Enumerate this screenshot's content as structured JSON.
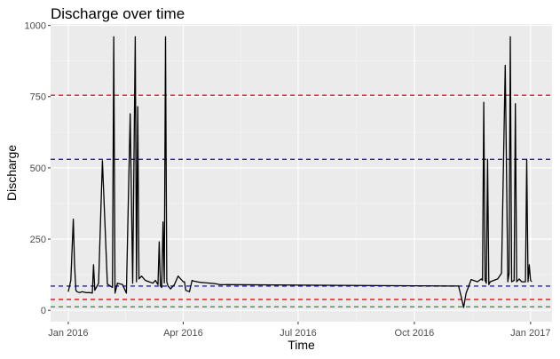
{
  "chart_data": {
    "type": "line",
    "title": "Discharge over time",
    "xlabel": "Time",
    "ylabel": "Discharge",
    "background": "#ebebeb",
    "grid": true,
    "xlim": [
      "2015-12-18",
      "2017-01-18"
    ],
    "ylim": [
      -40,
      1005
    ],
    "x_ticks": [
      {
        "date": "2016-01-01",
        "label": "Jan 2016"
      },
      {
        "date": "2016-04-01",
        "label": "Apr 2016"
      },
      {
        "date": "2016-07-01",
        "label": "Jul 2016"
      },
      {
        "date": "2016-10-01",
        "label": "Oct 2016"
      },
      {
        "date": "2017-01-01",
        "label": "Jan 2017"
      }
    ],
    "y_ticks": [
      {
        "value": 0,
        "label": "0"
      },
      {
        "value": 250,
        "label": "250"
      },
      {
        "value": 500,
        "label": "500"
      },
      {
        "value": 750,
        "label": "750"
      },
      {
        "value": 1000,
        "label": "1000"
      }
    ],
    "series": [
      {
        "color": "#000000",
        "x": [
          "2016-01-01",
          "2016-01-03",
          "2016-01-05",
          "2016-01-06",
          "2016-01-07",
          "2016-01-08",
          "2016-01-10",
          "2016-01-12",
          "2016-01-15",
          "2016-01-18",
          "2016-01-20",
          "2016-01-21",
          "2016-01-22",
          "2016-01-25",
          "2016-01-28",
          "2016-02-01",
          "2016-02-05",
          "2016-02-06",
          "2016-02-07",
          "2016-02-09",
          "2016-02-13",
          "2016-02-16",
          "2016-02-19",
          "2016-02-21",
          "2016-02-23",
          "2016-02-24",
          "2016-02-25",
          "2016-02-26",
          "2016-02-28",
          "2016-03-02",
          "2016-03-05",
          "2016-03-08",
          "2016-03-10",
          "2016-03-12",
          "2016-03-13",
          "2016-03-14",
          "2016-03-15",
          "2016-03-16",
          "2016-03-17",
          "2016-03-18",
          "2016-03-19",
          "2016-03-20",
          "2016-03-22",
          "2016-03-25",
          "2016-03-28",
          "2016-03-31",
          "2016-04-01",
          "2016-04-02",
          "2016-04-03",
          "2016-04-06",
          "2016-04-08",
          "2016-04-09",
          "2016-04-10",
          "2016-04-11",
          "2016-04-12",
          "2016-04-13",
          "2016-04-15",
          "2016-04-18",
          "2016-04-20",
          "2016-04-22",
          "2016-04-25",
          "2016-04-27",
          "2016-04-28",
          "2016-04-30",
          "2016-11-05",
          "2016-11-07",
          "2016-11-09",
          "2016-11-11",
          "2016-11-15",
          "2016-11-20",
          "2016-11-23",
          "2016-11-24",
          "2016-11-25",
          "2016-11-26",
          "2016-11-27",
          "2016-11-28",
          "2016-11-29",
          "2016-11-30",
          "2016-12-03",
          "2016-12-06",
          "2016-12-09",
          "2016-12-12",
          "2016-12-14",
          "2016-12-15",
          "2016-12-16",
          "2016-12-17",
          "2016-12-19",
          "2016-12-20",
          "2016-12-21",
          "2016-12-22",
          "2016-12-23",
          "2016-12-25",
          "2016-12-28",
          "2016-12-29",
          "2016-12-30",
          "2016-12-31",
          "2017-01-01",
          "2017-01-02"
        ],
        "y": [
          65,
          105,
          320,
          160,
          70,
          65,
          62,
          65,
          62,
          62,
          60,
          160,
          70,
          95,
          525,
          92,
          80,
          960,
          60,
          95,
          90,
          60,
          690,
          95,
          960,
          100,
          715,
          110,
          120,
          105,
          100,
          95,
          105,
          90,
          240,
          85,
          80,
          310,
          96,
          960,
          100,
          85,
          75,
          90,
          120,
          105,
          100,
          100,
          70,
          65,
          105,
          103,
          102,
          101,
          100,
          99,
          98,
          97,
          96,
          95,
          94,
          93,
          92,
          90,
          85,
          50,
          10,
          60,
          108,
          100,
          110,
          105,
          730,
          105,
          95,
          530,
          90,
          100,
          105,
          110,
          130,
          860,
          100,
          130,
          960,
          100,
          105,
          725,
          100,
          105,
          110,
          100,
          100,
          530,
          100,
          160,
          105,
          100
        ]
      }
    ],
    "reference_lines": [
      {
        "value": 755,
        "color": "#e41a1c",
        "style": "dashed"
      },
      {
        "value": 530,
        "color": "#1f1fe0",
        "style": "dashed"
      },
      {
        "value": 85,
        "color": "#1f1fe0",
        "style": "dashed"
      },
      {
        "value": 38,
        "color": "#e41a1c",
        "style": "dashed"
      },
      {
        "value": 12,
        "color": "#2ca02c",
        "style": "dashed"
      }
    ]
  }
}
